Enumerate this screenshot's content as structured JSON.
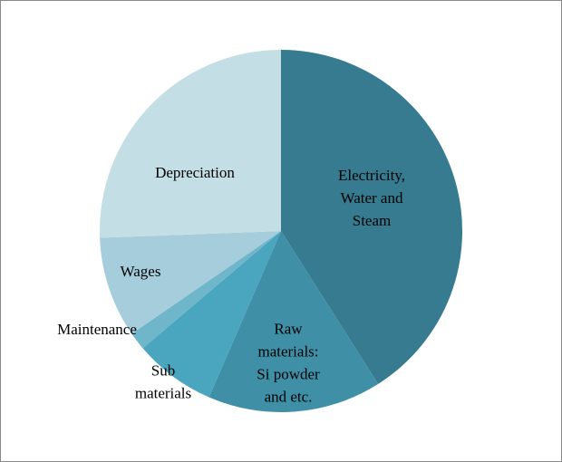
{
  "chart_data": {
    "type": "pie",
    "categories": [
      "Electricity,\nWater and\nSteam",
      "Raw\nmaterials:\nSi powder\nand etc.",
      "Sub\nmaterials",
      "Maintenance",
      "Wages",
      "Depreciation"
    ],
    "values": [
      41,
      15.5,
      7.3,
      1.6,
      9,
      25.6
    ],
    "colors": [
      "#367b8f",
      "#3f8fa6",
      "#4aa6bf",
      "#6fb6cb",
      "#a5cddb",
      "#c4dee6"
    ]
  }
}
